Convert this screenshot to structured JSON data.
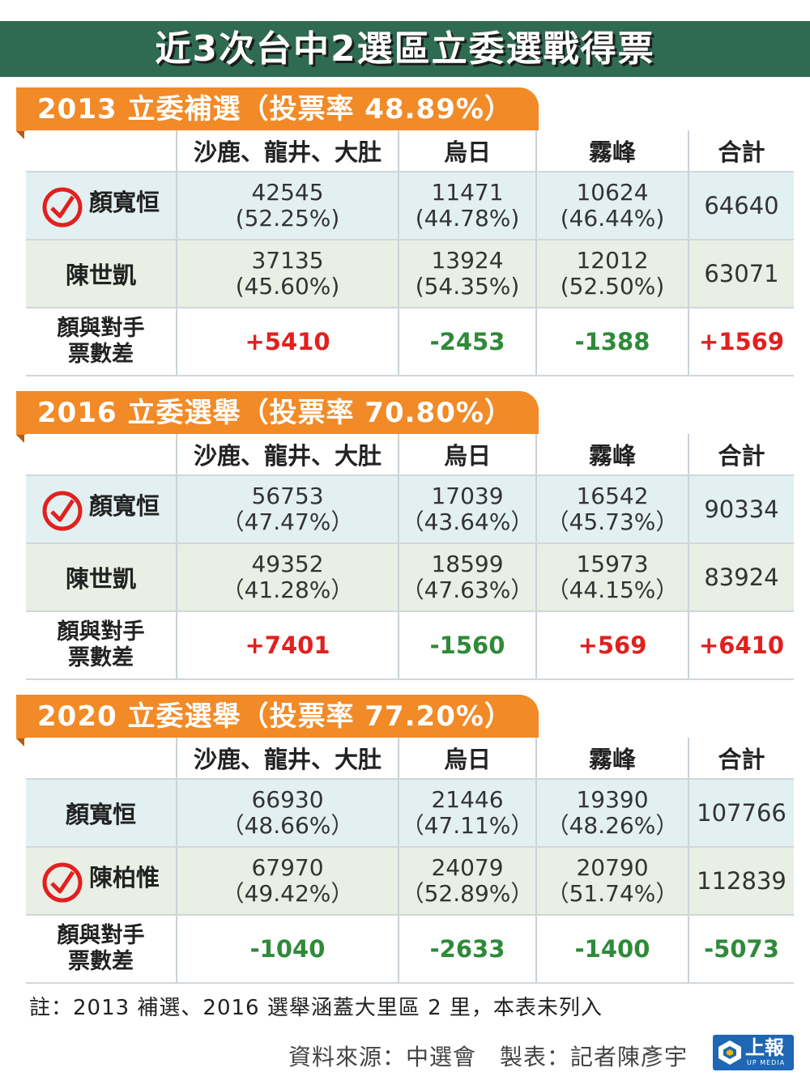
{
  "title": "近3次台中2選區立委選戰得票",
  "columns": [
    "",
    "沙鹿、龍井、大肚",
    "烏日",
    "霧峰",
    "合計"
  ],
  "diff_label_line1": "顏與對手",
  "diff_label_line2": "票數差",
  "sections": [
    {
      "heading": "2013 立委補選（投票率 48.89%）",
      "rows": [
        {
          "name": "顏寬恒",
          "winner": true,
          "cells": [
            [
              "42545",
              "(52.25%)"
            ],
            [
              "11471",
              "(44.78%)"
            ],
            [
              "10624",
              "(46.44%)"
            ]
          ],
          "total": "64640"
        },
        {
          "name": "陳世凱",
          "winner": false,
          "cells": [
            [
              "37135",
              "(45.60%)"
            ],
            [
              "13924",
              "(54.35%)"
            ],
            [
              "12012",
              "(52.50%)"
            ]
          ],
          "total": "63071"
        }
      ],
      "diffs": [
        "+5410",
        "-2453",
        "-1388",
        "+1569"
      ]
    },
    {
      "heading": "2016 立委選舉（投票率 70.80%）",
      "rows": [
        {
          "name": "顏寬恒",
          "winner": true,
          "cells": [
            [
              "56753",
              "（47.47%）"
            ],
            [
              "17039",
              "（43.64%）"
            ],
            [
              "16542",
              "（45.73%）"
            ]
          ],
          "total": "90334"
        },
        {
          "name": "陳世凱",
          "winner": false,
          "cells": [
            [
              "49352",
              "（41.28%）"
            ],
            [
              "18599",
              "（47.63%）"
            ],
            [
              "15973",
              "（44.15%）"
            ]
          ],
          "total": "83924"
        }
      ],
      "diffs": [
        "+7401",
        "-1560",
        "+569",
        "+6410"
      ]
    },
    {
      "heading": "2020 立委選舉（投票率 77.20%）",
      "rows": [
        {
          "name": "顏寬恒",
          "winner": false,
          "cells": [
            [
              "66930",
              "（48.66%）"
            ],
            [
              "21446",
              "（47.11%）"
            ],
            [
              "19390",
              "（48.26%）"
            ]
          ],
          "total": "107766"
        },
        {
          "name": "陳柏惟",
          "winner": true,
          "cells": [
            [
              "67970",
              "（49.42%）"
            ],
            [
              "24079",
              "（52.89%）"
            ],
            [
              "20790",
              "（51.74%）"
            ]
          ],
          "total": "112839"
        }
      ],
      "diffs": [
        "-1040",
        "-2633",
        "-1400",
        "-5073"
      ]
    }
  ],
  "note": "註：2013 補選、2016 選舉涵蓋大里區 2 里，本表未列入",
  "source": "資料來源：中選會　製表：記者陳彥宇",
  "logo": {
    "text": "上報",
    "sub": "UP MEDIA"
  },
  "colors": {
    "title_bg": "#2f6b52",
    "section_head": "#f18a27",
    "positive": "#e1201f",
    "negative": "#2f8a39",
    "logo_bg": "#1f66b5",
    "seal": "#e1201f"
  }
}
